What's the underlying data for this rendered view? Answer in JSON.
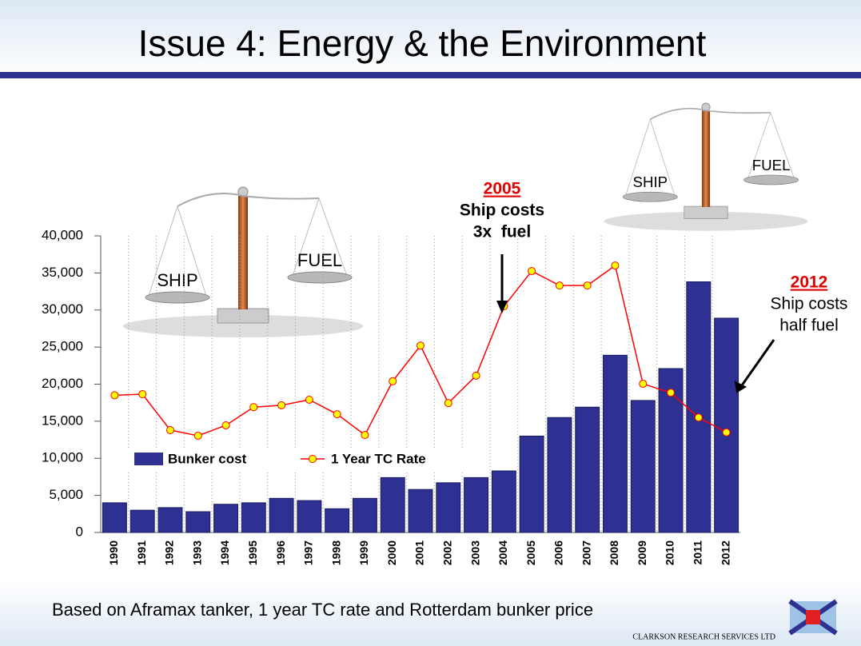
{
  "chart_data": {
    "type": "bar",
    "title": "Issue 4: Energy & the Environment",
    "categories": [
      "1990",
      "1991",
      "1992",
      "1993",
      "1994",
      "1995",
      "1996",
      "1997",
      "1998",
      "1999",
      "2000",
      "2001",
      "2002",
      "2003",
      "2004",
      "2005",
      "2006",
      "2007",
      "2008",
      "2009",
      "2010",
      "2011",
      "2012"
    ],
    "series": [
      {
        "name": "Bunker cost",
        "type": "bar",
        "color": "#2e3192",
        "values": [
          4000,
          3000,
          3350,
          2800,
          3800,
          4000,
          4600,
          4300,
          3200,
          4600,
          7400,
          5800,
          6700,
          7400,
          8300,
          13000,
          15500,
          16900,
          23900,
          17800,
          22100,
          33800,
          28900
        ]
      },
      {
        "name": "1 Year TC Rate",
        "type": "line",
        "color": "#ff0000",
        "marker_color": "#ffff00",
        "values": [
          18500,
          18650,
          13800,
          13050,
          14450,
          16900,
          17150,
          17900,
          15950,
          13150,
          20400,
          25200,
          17450,
          21150,
          30500,
          35250,
          33300,
          33300,
          36000,
          20050,
          18850,
          15500,
          13500
        ]
      }
    ],
    "ylim": [
      0,
      40000
    ],
    "yticks": [
      0,
      {
        "value": 5000,
        "label": "5,000"
      },
      {
        "value": 10000,
        "label": "10,000"
      },
      {
        "value": 15000,
        "label": "15,000"
      },
      {
        "value": 20000,
        "label": "20,000"
      },
      {
        "value": 25000,
        "label": "25,000"
      },
      {
        "value": 30000,
        "label": "30,000"
      },
      {
        "value": 35000,
        "label": "35,000"
      },
      {
        "value": 40000,
        "label": "40,000"
      }
    ],
    "annotations": [
      {
        "lines": [
          "2005",
          "Ship costs",
          "3x  fuel"
        ]
      },
      {
        "lines": [
          "2012",
          "Ship costs",
          "half fuel"
        ]
      }
    ],
    "note": "Based on Aframax tanker, 1 year TC rate and Rotterdam bunker price"
  },
  "illustrations": [
    {
      "left": "SHIP",
      "right": "FUEL"
    },
    {
      "left": "SHIP",
      "right": "FUEL"
    }
  ],
  "company": "CLARKSON RESEARCH SERVICES LTD"
}
